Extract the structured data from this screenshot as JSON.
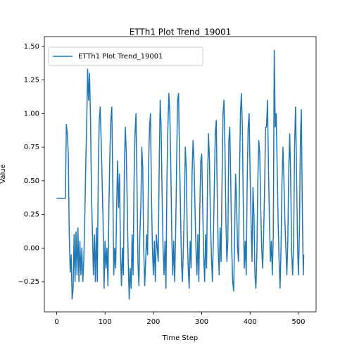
{
  "chart_data": {
    "type": "line",
    "title": "ETTh1 Plot Trend_19001",
    "xlabel": "Time Step",
    "ylabel": "Value",
    "legend": "upper left",
    "xlim": [
      -25.5,
      536.5
    ],
    "ylim": [
      -0.475,
      1.573
    ],
    "xticks": [
      0,
      100,
      200,
      300,
      400,
      500
    ],
    "yticks": [
      {
        "value": -0.25,
        "label": "−0.25"
      },
      {
        "value": 0,
        "label": "0.00"
      },
      {
        "value": 0.25,
        "label": "0.25"
      },
      {
        "value": 0.5,
        "label": "0.50"
      },
      {
        "value": 0.75,
        "label": "0.75"
      },
      {
        "value": 1.0,
        "label": "1.00"
      },
      {
        "value": 1.25,
        "label": "1.25"
      },
      {
        "value": 1.5,
        "label": "1.50"
      }
    ],
    "series": [
      {
        "name": "ETTh1 Plot Trend_19001",
        "color": "#1f77b4",
        "x": [
          0,
          18,
          20,
          22,
          24,
          26,
          28,
          30,
          32,
          34,
          36,
          38,
          40,
          42,
          44,
          46,
          48,
          50,
          52,
          54,
          56,
          58,
          60,
          62,
          64,
          66,
          68,
          70,
          72,
          74,
          76,
          78,
          80,
          82,
          84,
          86,
          88,
          90,
          92,
          94,
          96,
          98,
          100,
          102,
          104,
          106,
          108,
          110,
          112,
          114,
          116,
          118,
          120,
          122,
          124,
          126,
          128,
          130,
          132,
          134,
          136,
          138,
          140,
          142,
          144,
          146,
          148,
          150,
          152,
          154,
          156,
          158,
          160,
          162,
          164,
          166,
          168,
          170,
          172,
          174,
          176,
          178,
          180,
          182,
          184,
          186,
          188,
          190,
          192,
          194,
          196,
          198,
          200,
          202,
          204,
          206,
          208,
          210,
          212,
          214,
          216,
          218,
          220,
          222,
          224,
          226,
          228,
          230,
          232,
          234,
          236,
          238,
          240,
          242,
          244,
          246,
          248,
          250,
          252,
          254,
          256,
          258,
          260,
          262,
          264,
          266,
          268,
          270,
          272,
          274,
          276,
          278,
          280,
          282,
          284,
          286,
          288,
          290,
          292,
          294,
          296,
          298,
          300,
          302,
          304,
          306,
          308,
          310,
          312,
          314,
          316,
          318,
          320,
          322,
          324,
          326,
          328,
          330,
          332,
          334,
          336,
          338,
          340,
          342,
          344,
          346,
          348,
          350,
          352,
          354,
          356,
          358,
          360,
          362,
          364,
          366,
          368,
          370,
          372,
          374,
          376,
          378,
          380,
          382,
          384,
          386,
          388,
          390,
          392,
          394,
          396,
          398,
          400,
          402,
          404,
          406,
          408,
          410,
          412,
          414,
          416,
          418,
          420,
          422,
          424,
          426,
          428,
          430,
          432,
          434,
          436,
          438,
          440,
          442,
          444,
          446,
          448,
          450,
          452,
          454,
          456,
          458,
          460,
          462,
          464,
          466,
          468,
          470,
          472,
          474,
          476,
          478,
          480,
          482,
          484,
          486,
          488,
          490,
          492,
          494,
          496,
          498,
          500,
          502,
          504,
          506,
          508,
          510,
          511
        ],
        "values": [
          0.37,
          0.37,
          0.92,
          0.85,
          0.7,
          0.1,
          -0.18,
          -0.05,
          -0.38,
          -0.3,
          0.1,
          -0.25,
          0.12,
          -0.2,
          0.15,
          -0.25,
          0.05,
          -0.2,
          0.0,
          -0.25,
          -0.1,
          0.2,
          0.6,
          0.9,
          1.33,
          1.1,
          1.3,
          0.95,
          0.4,
          0.1,
          -0.2,
          0.1,
          -0.25,
          0.15,
          -0.25,
          0.55,
          0.95,
          1.05,
          0.8,
          0.5,
          0.2,
          -0.3,
          0.05,
          -0.15,
          0.0,
          -0.28,
          0.3,
          0.7,
          0.95,
          1.05,
          0.5,
          -0.2,
          0.0,
          -0.15,
          0.3,
          0.65,
          0.3,
          0.55,
          -0.05,
          -0.28,
          0.0,
          -0.2,
          0.6,
          0.9,
          0.7,
          0.3,
          -0.1,
          -0.38,
          -0.15,
          -0.3,
          0.1,
          -0.2,
          0.5,
          0.85,
          1.0,
          0.5,
          -0.1,
          -0.28,
          0.1,
          0.3,
          0.75,
          0.6,
          0.0,
          -0.28,
          -0.1,
          0.1,
          -0.05,
          0.6,
          0.9,
          1.0,
          0.4,
          0.0,
          -0.2,
          0.05,
          -0.25,
          0.1,
          0.0,
          -0.1,
          0.6,
          1.1,
          0.9,
          0.4,
          0.0,
          -0.2,
          0.05,
          -0.3,
          0.5,
          0.9,
          1.15,
          1.0,
          0.6,
          0.1,
          -0.2,
          0.05,
          -0.25,
          0.1,
          0.6,
          1.1,
          1.15,
          0.7,
          0.3,
          -0.1,
          -0.25,
          0.0,
          0.3,
          0.75,
          0.6,
          0.1,
          -0.15,
          -0.3,
          0.05,
          -0.15,
          0.55,
          0.8,
          0.65,
          0.3,
          0.0,
          -0.2,
          0.1,
          -0.25,
          0.3,
          0.65,
          0.7,
          0.3,
          -0.05,
          -0.25,
          0.1,
          -0.15,
          0.5,
          0.85,
          0.65,
          0.2,
          -0.05,
          -0.25,
          0.05,
          0.45,
          0.85,
          0.95,
          0.4,
          0.0,
          -0.2,
          0.15,
          -0.1,
          0.5,
          1.0,
          1.1,
          0.75,
          0.2,
          -0.1,
          0.05,
          0.8,
          0.9,
          0.5,
          0.0,
          -0.25,
          -0.32,
          0.1,
          0.55,
          0.35,
          0.0,
          -0.1,
          0.5,
          1.0,
          1.15,
          0.9,
          0.3,
          -0.15,
          0.05,
          -0.2,
          0.5,
          0.9,
          1.0,
          0.55,
          0.2,
          -0.1,
          0.45,
          0.25,
          -0.2,
          -0.3,
          -0.05,
          0.5,
          0.8,
          0.7,
          0.3,
          0.0,
          -0.15,
          0.1,
          0.45,
          0.9,
          0.9,
          1.1,
          0.6,
          0.2,
          -0.1,
          0.05,
          -0.2,
          0.1,
          1.47,
          0.9,
          1.0,
          0.6,
          0.2,
          -0.1,
          -0.3,
          0.0,
          0.5,
          0.75,
          0.5,
          0.2,
          0.0,
          -0.2,
          0.05,
          0.6,
          0.85,
          0.5,
          -0.05,
          -0.2,
          0.05,
          0.75,
          1.05,
          0.6,
          0.05,
          -0.2,
          0.1,
          0.8,
          1.03,
          0.3,
          -0.2,
          -0.05
        ]
      }
    ]
  }
}
